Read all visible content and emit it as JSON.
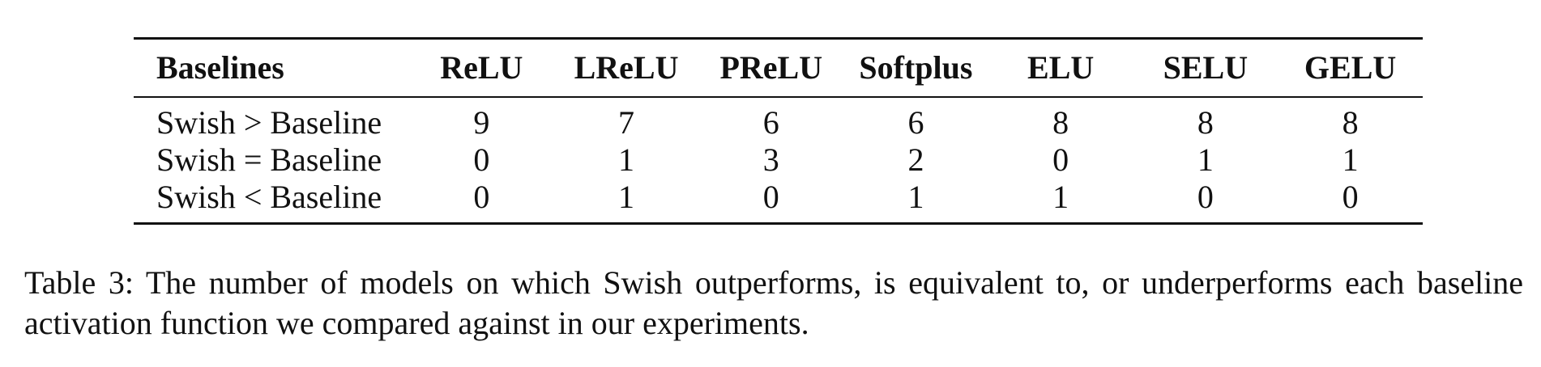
{
  "table": {
    "header": [
      "Baselines",
      "ReLU",
      "LReLU",
      "PReLU",
      "Softplus",
      "ELU",
      "SELU",
      "GELU"
    ],
    "rows": [
      {
        "label": "Swish > Baseline",
        "values": [
          "9",
          "7",
          "6",
          "6",
          "8",
          "8",
          "8"
        ]
      },
      {
        "label": "Swish = Baseline",
        "values": [
          "0",
          "1",
          "3",
          "2",
          "0",
          "1",
          "1"
        ]
      },
      {
        "label": "Swish < Baseline",
        "values": [
          "0",
          "1",
          "0",
          "1",
          "1",
          "0",
          "0"
        ]
      }
    ]
  },
  "caption": {
    "text": "Table 3: The number of models on which Swish outperforms, is equivalent to, or underperforms each baseline activation function we compared against in our experiments."
  }
}
